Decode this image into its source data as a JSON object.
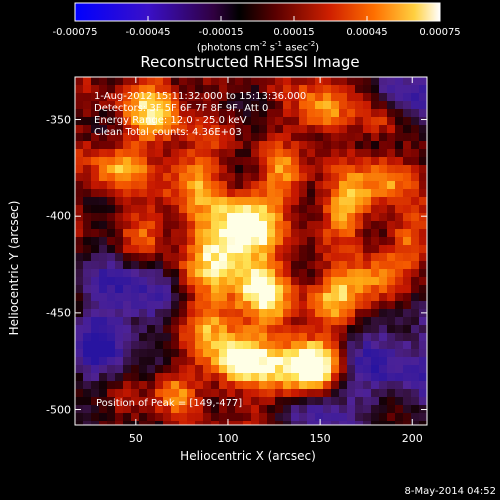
{
  "colorbar": {
    "ticks": [
      "-0.00075",
      "-0.00045",
      "-0.00015",
      "0.00015",
      "0.00045",
      "0.00075"
    ],
    "tick_values": [
      -0.00075,
      -0.00045,
      -0.00015,
      0.00015,
      0.00045,
      0.00075
    ],
    "range": [
      -0.00075,
      0.00075
    ],
    "units_prefix": "(photons cm",
    "units_sup1": "-2",
    "units_mid": " s",
    "units_sup2": "-1",
    "units_mid2": " asec",
    "units_sup3": "-2",
    "units_suffix": ")"
  },
  "image": {
    "title": "Reconstructed RHESSI Image",
    "info_lines": [
      "1-Aug-2012 15:11:32.000 to 15:13:36.000",
      "Detectors: 3F 5F 6F 7F 8F 9F, Att 0",
      "Energy Range: 12.0 - 25.0 keV",
      "Clean     Total counts: 4.36E+03"
    ],
    "peak_label": "Position of Peak = [149,-477]",
    "xlabel": "Heliocentric X (arcsec)",
    "ylabel": "Heliocentric Y (arcsec)",
    "xticks": [
      "50",
      "100",
      "150",
      "200"
    ],
    "xtick_values": [
      50,
      100,
      150,
      200
    ],
    "xrange": [
      17,
      208
    ],
    "yticks": [
      "-350",
      "-400",
      "-450",
      "-500"
    ],
    "ytick_values": [
      -350,
      -400,
      -450,
      -500
    ],
    "yrange": [
      -508,
      -328
    ],
    "colormap": "blue-purple-black-red-orange-yellow-white",
    "blobs": [
      {
        "x": 105,
        "y": -475,
        "a": 1.0,
        "r": 11
      },
      {
        "x": 149,
        "y": -477,
        "a": 1.0,
        "r": 9
      },
      {
        "x": 136,
        "y": -478,
        "a": 0.9,
        "r": 12
      },
      {
        "x": 110,
        "y": -405,
        "a": 0.95,
        "r": 12
      },
      {
        "x": 95,
        "y": -420,
        "a": 0.8,
        "r": 14
      },
      {
        "x": 120,
        "y": -440,
        "a": 0.8,
        "r": 12
      },
      {
        "x": 160,
        "y": -440,
        "a": 0.75,
        "r": 10
      },
      {
        "x": 180,
        "y": -435,
        "a": 0.7,
        "r": 10
      },
      {
        "x": 165,
        "y": -395,
        "a": 0.75,
        "r": 10
      },
      {
        "x": 185,
        "y": -380,
        "a": 0.6,
        "r": 10
      },
      {
        "x": 60,
        "y": -345,
        "a": 0.75,
        "r": 12
      },
      {
        "x": 40,
        "y": -375,
        "a": 0.65,
        "r": 10
      },
      {
        "x": 150,
        "y": -345,
        "a": 0.7,
        "r": 10
      },
      {
        "x": 185,
        "y": -350,
        "a": 0.55,
        "r": 8
      },
      {
        "x": 80,
        "y": -380,
        "a": 0.6,
        "r": 12
      },
      {
        "x": 55,
        "y": -410,
        "a": 0.55,
        "r": 10
      },
      {
        "x": 70,
        "y": -490,
        "a": 0.6,
        "r": 8
      },
      {
        "x": 130,
        "y": -380,
        "a": 0.55,
        "r": 10
      },
      {
        "x": 90,
        "y": -455,
        "a": 0.6,
        "r": 10
      },
      {
        "x": 200,
        "y": -410,
        "a": 0.5,
        "r": 8
      }
    ],
    "dark_regions": [
      {
        "x": 45,
        "y": -440,
        "r": 18
      },
      {
        "x": 190,
        "y": -475,
        "r": 20
      },
      {
        "x": 200,
        "y": -340,
        "r": 14
      },
      {
        "x": 30,
        "y": -470,
        "r": 12
      },
      {
        "x": 150,
        "y": -500,
        "r": 12
      }
    ]
  },
  "footer": {
    "date": "8-May-2014 04:52"
  }
}
